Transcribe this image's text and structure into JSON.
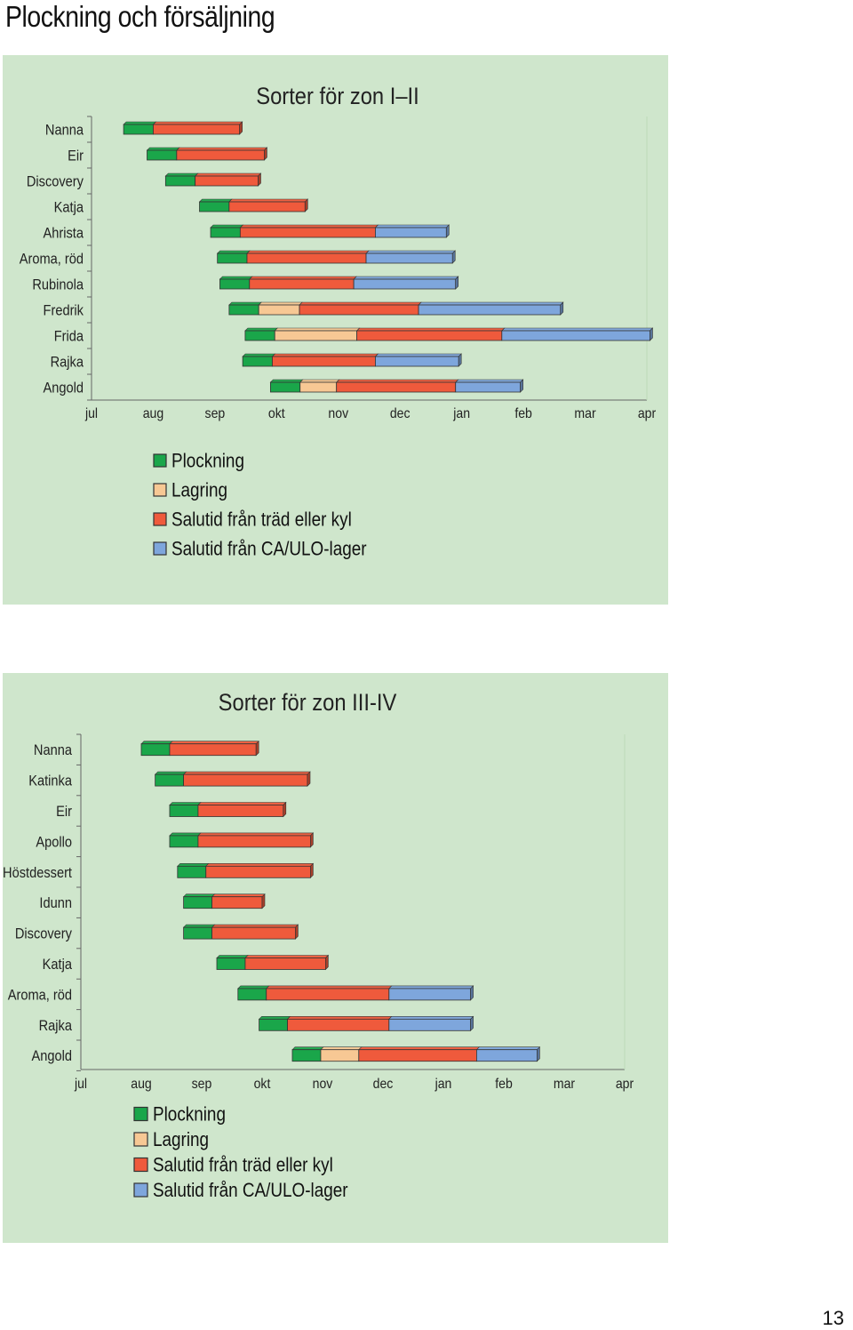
{
  "page": {
    "title": "Plockning och försäljning",
    "page_number": "13"
  },
  "colors": {
    "Plockning": "#1aa64a",
    "Lagring": "#f7c894",
    "Salutid från träd eller kyl": "#ef5a3c",
    "Salutid från CA/ULO-lager": "#7ea6dc"
  },
  "legend": [
    "Plockning",
    "Lagring",
    "Salutid från träd eller kyl",
    "Salutid från CA/ULO-lager"
  ],
  "chart_data": [
    {
      "type": "bar",
      "orientation": "horizontal-stacked",
      "title": "Sorter för zon I–II",
      "x_ticks": [
        "jul",
        "aug",
        "sep",
        "okt",
        "nov",
        "dec",
        "jan",
        "feb",
        "mar",
        "apr"
      ],
      "xlim": [
        0,
        9
      ],
      "grid": false,
      "legend_position": "bottom",
      "rows": [
        {
          "label": "Nanna",
          "segments": [
            {
              "series": "Plockning",
              "start": 0.52,
              "end": 1.0
            },
            {
              "series": "Salutid från träd eller kyl",
              "start": 1.0,
              "end": 2.4
            }
          ]
        },
        {
          "label": "Eir",
          "segments": [
            {
              "series": "Plockning",
              "start": 0.9,
              "end": 1.38
            },
            {
              "series": "Salutid från träd eller kyl",
              "start": 1.38,
              "end": 2.8
            }
          ]
        },
        {
          "label": "Discovery",
          "segments": [
            {
              "series": "Plockning",
              "start": 1.2,
              "end": 1.68
            },
            {
              "series": "Salutid från träd eller kyl",
              "start": 1.68,
              "end": 2.7
            }
          ]
        },
        {
          "label": "Katja",
          "segments": [
            {
              "series": "Plockning",
              "start": 1.75,
              "end": 2.23
            },
            {
              "series": "Salutid från träd eller kyl",
              "start": 2.23,
              "end": 3.46
            }
          ]
        },
        {
          "label": "Ahrista",
          "segments": [
            {
              "series": "Plockning",
              "start": 1.93,
              "end": 2.41
            },
            {
              "series": "Salutid från träd eller kyl",
              "start": 2.41,
              "end": 4.6
            },
            {
              "series": "Salutid från CA/ULO-lager",
              "start": 4.6,
              "end": 5.75
            }
          ]
        },
        {
          "label": "Aroma, röd",
          "segments": [
            {
              "series": "Plockning",
              "start": 2.04,
              "end": 2.52
            },
            {
              "series": "Salutid från träd eller kyl",
              "start": 2.52,
              "end": 4.45
            },
            {
              "series": "Salutid från CA/ULO-lager",
              "start": 4.45,
              "end": 5.85
            }
          ]
        },
        {
          "label": "Rubinola",
          "segments": [
            {
              "series": "Plockning",
              "start": 2.08,
              "end": 2.56
            },
            {
              "series": "Salutid från träd eller kyl",
              "start": 2.56,
              "end": 4.25
            },
            {
              "series": "Salutid från CA/ULO-lager",
              "start": 4.25,
              "end": 5.9
            }
          ]
        },
        {
          "label": "Fredrik",
          "segments": [
            {
              "series": "Plockning",
              "start": 2.23,
              "end": 2.71
            },
            {
              "series": "Lagring",
              "start": 2.71,
              "end": 3.37
            },
            {
              "series": "Salutid från träd eller kyl",
              "start": 3.37,
              "end": 5.3
            },
            {
              "series": "Salutid från CA/ULO-lager",
              "start": 5.3,
              "end": 7.6
            }
          ]
        },
        {
          "label": "Frida",
          "segments": [
            {
              "series": "Plockning",
              "start": 2.49,
              "end": 2.97
            },
            {
              "series": "Lagring",
              "start": 2.97,
              "end": 4.3
            },
            {
              "series": "Salutid från träd eller kyl",
              "start": 4.3,
              "end": 6.65
            },
            {
              "series": "Salutid från CA/ULO-lager",
              "start": 6.65,
              "end": 9.05
            }
          ]
        },
        {
          "label": "Rajka",
          "segments": [
            {
              "series": "Plockning",
              "start": 2.45,
              "end": 2.93
            },
            {
              "series": "Salutid från träd eller kyl",
              "start": 2.93,
              "end": 4.6
            },
            {
              "series": "Salutid från CA/ULO-lager",
              "start": 4.6,
              "end": 5.95
            }
          ]
        },
        {
          "label": "Angold",
          "segments": [
            {
              "series": "Plockning",
              "start": 2.9,
              "end": 3.38
            },
            {
              "series": "Lagring",
              "start": 3.38,
              "end": 3.97
            },
            {
              "series": "Salutid från träd eller kyl",
              "start": 3.97,
              "end": 5.9
            },
            {
              "series": "Salutid från CA/ULO-lager",
              "start": 5.9,
              "end": 6.95
            }
          ]
        }
      ]
    },
    {
      "type": "bar",
      "orientation": "horizontal-stacked",
      "title": "Sorter för zon III-IV",
      "x_ticks": [
        "jul",
        "aug",
        "sep",
        "okt",
        "nov",
        "dec",
        "jan",
        "feb",
        "mar",
        "apr"
      ],
      "xlim": [
        0,
        9
      ],
      "grid": false,
      "legend_position": "bottom",
      "rows": [
        {
          "label": "Nanna",
          "segments": [
            {
              "series": "Plockning",
              "start": 1.0,
              "end": 1.47
            },
            {
              "series": "Salutid från träd eller kyl",
              "start": 1.47,
              "end": 2.9
            }
          ]
        },
        {
          "label": "Katinka",
          "segments": [
            {
              "series": "Plockning",
              "start": 1.23,
              "end": 1.7
            },
            {
              "series": "Salutid från träd eller kyl",
              "start": 1.7,
              "end": 3.75
            }
          ]
        },
        {
          "label": "Eir",
          "segments": [
            {
              "series": "Plockning",
              "start": 1.47,
              "end": 1.94
            },
            {
              "series": "Salutid från träd eller kyl",
              "start": 1.94,
              "end": 3.35
            }
          ]
        },
        {
          "label": "Apollo",
          "segments": [
            {
              "series": "Plockning",
              "start": 1.47,
              "end": 1.94
            },
            {
              "series": "Salutid från träd eller kyl",
              "start": 1.94,
              "end": 3.8
            }
          ]
        },
        {
          "label": "Höstdessert",
          "segments": [
            {
              "series": "Plockning",
              "start": 1.6,
              "end": 2.07
            },
            {
              "series": "Salutid från träd eller kyl",
              "start": 2.07,
              "end": 3.8
            }
          ]
        },
        {
          "label": "Idunn",
          "segments": [
            {
              "series": "Plockning",
              "start": 1.7,
              "end": 2.17
            },
            {
              "series": "Salutid från träd eller kyl",
              "start": 2.17,
              "end": 3.0
            }
          ]
        },
        {
          "label": "Discovery",
          "segments": [
            {
              "series": "Plockning",
              "start": 1.7,
              "end": 2.17
            },
            {
              "series": "Salutid från träd eller kyl",
              "start": 2.17,
              "end": 3.55
            }
          ]
        },
        {
          "label": "Katja",
          "segments": [
            {
              "series": "Plockning",
              "start": 2.25,
              "end": 2.72
            },
            {
              "series": "Salutid från träd eller kyl",
              "start": 2.72,
              "end": 4.05
            }
          ]
        },
        {
          "label": "Aroma, röd",
          "segments": [
            {
              "series": "Plockning",
              "start": 2.6,
              "end": 3.07
            },
            {
              "series": "Salutid från träd eller kyl",
              "start": 3.07,
              "end": 5.1
            },
            {
              "series": "Salutid från CA/ULO-lager",
              "start": 5.1,
              "end": 6.45
            }
          ]
        },
        {
          "label": "Rajka",
          "segments": [
            {
              "series": "Plockning",
              "start": 2.95,
              "end": 3.42
            },
            {
              "series": "Salutid från träd eller kyl",
              "start": 3.42,
              "end": 5.1
            },
            {
              "series": "Salutid från CA/ULO-lager",
              "start": 5.1,
              "end": 6.45
            }
          ]
        },
        {
          "label": "Angold",
          "segments": [
            {
              "series": "Plockning",
              "start": 3.5,
              "end": 3.97
            },
            {
              "series": "Lagring",
              "start": 3.97,
              "end": 4.6
            },
            {
              "series": "Salutid från träd eller kyl",
              "start": 4.6,
              "end": 6.55
            },
            {
              "series": "Salutid från CA/ULO-lager",
              "start": 6.55,
              "end": 7.55
            }
          ]
        }
      ]
    }
  ]
}
